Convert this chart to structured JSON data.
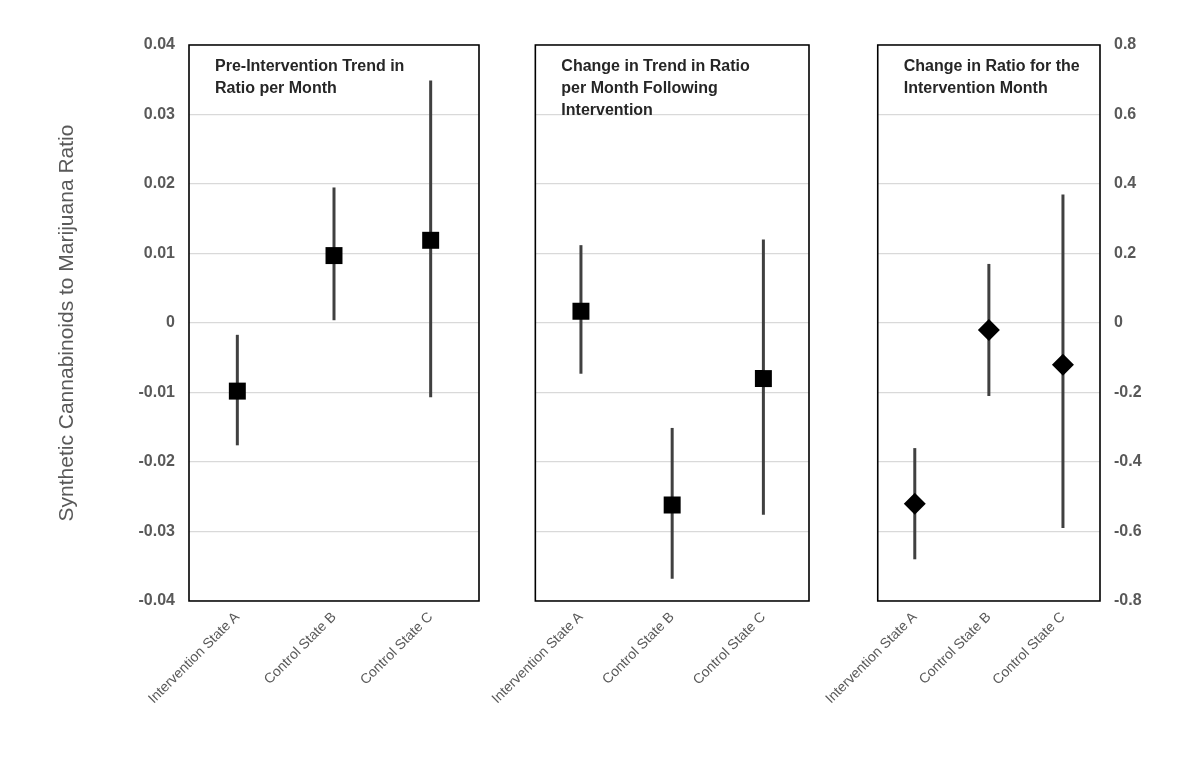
{
  "chart_data": [
    {
      "type": "scatter",
      "ylabel": "Synthetic Cannabinoids to Marijuana Ratio",
      "annotations": [
        "Pre-Intervention Trend in Ratio per Month"
      ],
      "categories": [
        "Intervention State A",
        "Control State B",
        "Control State C"
      ],
      "series": [
        {
          "color": "#000000",
          "values": [
            -0.0098,
            0.0097,
            0.0119
          ],
          "errors": [
            [
              -0.0176,
              -0.0017
            ],
            [
              0.0004,
              0.0195
            ],
            [
              -0.0107,
              0.0349
            ]
          ]
        }
      ],
      "ylim": [
        -0.04,
        0.04
      ],
      "yticks": [
        -0.04,
        -0.03,
        -0.02,
        -0.01,
        0,
        0.01,
        0.02,
        0.03,
        0.04
      ],
      "grid": "y",
      "marker": "square"
    },
    {
      "type": "scatter",
      "annotations": [
        "Change in Trend in Ratio per Month Following Intervention"
      ],
      "categories": [
        "Intervention State A",
        "Control State B",
        "Control State C"
      ],
      "series": [
        {
          "color": "#000000",
          "values": [
            0.0017,
            -0.0262,
            -0.008
          ],
          "errors": [
            [
              -0.0073,
              0.0112
            ],
            [
              -0.0368,
              -0.0151
            ],
            [
              -0.0276,
              0.012
            ]
          ]
        }
      ],
      "ylim": [
        -0.04,
        0.04
      ],
      "yticks": [
        -0.04,
        -0.03,
        -0.02,
        -0.01,
        0,
        0.01,
        0.02,
        0.03,
        0.04
      ],
      "tick_labels": "x",
      "grid": "y",
      "marker": "square"
    },
    {
      "type": "scatter",
      "annotations": [
        "Change in Ratio for the Intervention Month"
      ],
      "categories": [
        "Intervention State A",
        "Control State B",
        "Control State C"
      ],
      "series": [
        {
          "axis": "y2",
          "color": "#000000",
          "values": [
            -0.52,
            -0.02,
            -0.12
          ],
          "errors": [
            [
              -0.68,
              -0.36
            ],
            [
              -0.21,
              0.17
            ],
            [
              -0.59,
              0.37
            ]
          ]
        }
      ],
      "y2lim": [
        -0.8,
        0.8
      ],
      "y2ticks": [
        -0.8,
        -0.6,
        -0.4,
        -0.2,
        0,
        0.2,
        0.4,
        0.6,
        0.8
      ],
      "grid": "y",
      "marker": "diamond"
    }
  ]
}
